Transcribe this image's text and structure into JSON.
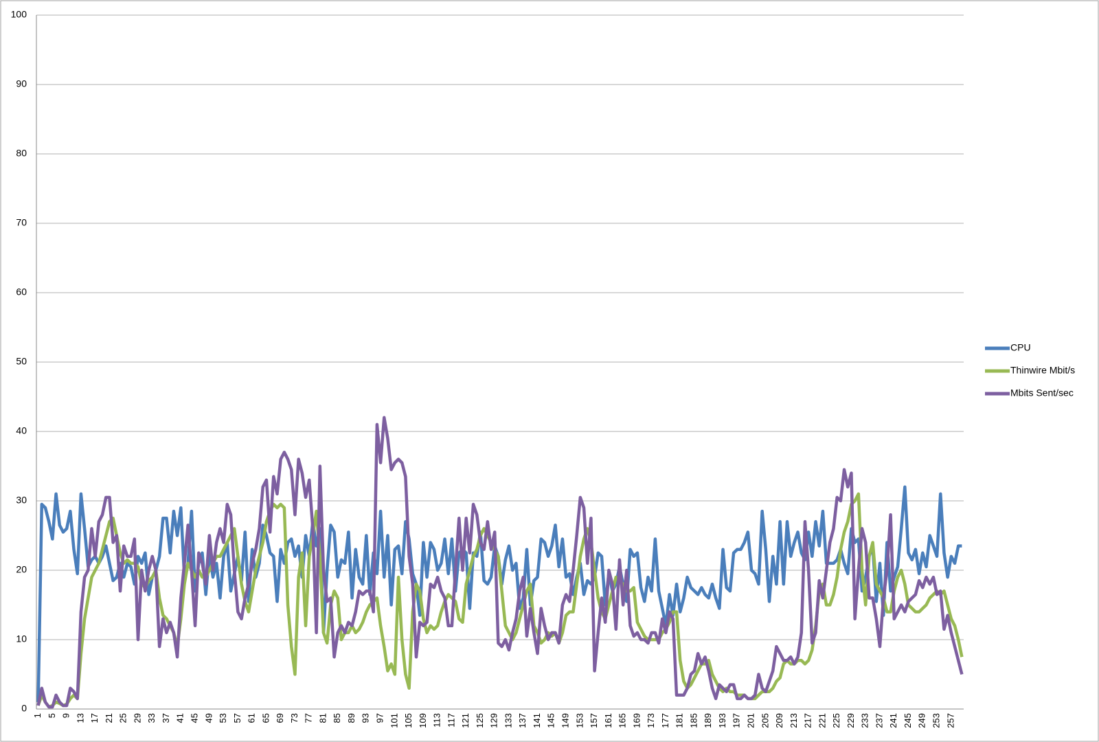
{
  "chart_data": {
    "type": "line",
    "categories": [
      1,
      null,
      null,
      null,
      5,
      null,
      null,
      null,
      9,
      null,
      null,
      null,
      13,
      null,
      null,
      null,
      17,
      null,
      null,
      null,
      21,
      null,
      null,
      null,
      25,
      null,
      null,
      null,
      29,
      null,
      null,
      null,
      33,
      null,
      null,
      null,
      37,
      null,
      null,
      null,
      41,
      null,
      null,
      null,
      45,
      null,
      null,
      null,
      49,
      null,
      null,
      null,
      53,
      null,
      null,
      null,
      57,
      null,
      null,
      null,
      61,
      null,
      null,
      null,
      65,
      null,
      null,
      null,
      69,
      null,
      null,
      null,
      73,
      null,
      null,
      null,
      77,
      null,
      null,
      null,
      81,
      null,
      null,
      null,
      85,
      null,
      null,
      null,
      89,
      null,
      null,
      null,
      93,
      null,
      null,
      null,
      97,
      null,
      null,
      null,
      101,
      null,
      null,
      null,
      105,
      null,
      null,
      null,
      109,
      null,
      null,
      null,
      113,
      null,
      null,
      null,
      117,
      null,
      null,
      null,
      121,
      null,
      null,
      null,
      125,
      null,
      null,
      null,
      129,
      null,
      null,
      null,
      133,
      null,
      null,
      null,
      137,
      null,
      null,
      null,
      141,
      null,
      null,
      null,
      145,
      null,
      null,
      null,
      149,
      null,
      null,
      null,
      153,
      null,
      null,
      null,
      157,
      null,
      null,
      null,
      161,
      null,
      null,
      null,
      165,
      null,
      null,
      null,
      169,
      null,
      null,
      null,
      173,
      null,
      null,
      null,
      177,
      null,
      null,
      null,
      181,
      null,
      null,
      null,
      185,
      null,
      null,
      null,
      189,
      null,
      null,
      null,
      193,
      null,
      null,
      null,
      197,
      null,
      null,
      null,
      201,
      null,
      null,
      null,
      205,
      null,
      null,
      null,
      209,
      null,
      null,
      null,
      213,
      null,
      null,
      null,
      217,
      null,
      null,
      null,
      221,
      null,
      null,
      null,
      225,
      null,
      null,
      null,
      229,
      null,
      null,
      null,
      233,
      null,
      null,
      null,
      237,
      null,
      null,
      null,
      241,
      null,
      null,
      null,
      245,
      null,
      null,
      null,
      249,
      null,
      null,
      null,
      253,
      null,
      null,
      null,
      257,
      null,
      null,
      null
    ],
    "series": [
      {
        "name": "CPU",
        "color": "#4a7ebb",
        "values": [
          1,
          29.5,
          29,
          27,
          24.5,
          31,
          26.5,
          25.5,
          26,
          28.5,
          23,
          19.5,
          31,
          26,
          20.5,
          21.5,
          22,
          21,
          22,
          23.5,
          21,
          18.5,
          19,
          21,
          19,
          21,
          20.5,
          18,
          22,
          21,
          22.5,
          16.5,
          19,
          20,
          22,
          27.5,
          27.5,
          22.5,
          28.5,
          25,
          29,
          19,
          21,
          28.5,
          17,
          21,
          22.5,
          16.5,
          22.5,
          19,
          21,
          16,
          22,
          24,
          17,
          19.5,
          22,
          18.5,
          25.5,
          15.5,
          23,
          19,
          21,
          26.5,
          25,
          22.5,
          22,
          15.5,
          23,
          21,
          24,
          24.5,
          22,
          23.5,
          19,
          25,
          22,
          27,
          23.5,
          26,
          11,
          20,
          26.5,
          25.5,
          19,
          21.5,
          21,
          25.5,
          16,
          23,
          19,
          18,
          25,
          16.5,
          22.5,
          19.5,
          28.5,
          19,
          25,
          15,
          23,
          23.5,
          19.5,
          27,
          24.5,
          19.5,
          18,
          13.5,
          24,
          19,
          24,
          23,
          20,
          21,
          24.5,
          19.5,
          24.5,
          17,
          22.5,
          23,
          22.5,
          14.5,
          22.5,
          22,
          25.5,
          18.5,
          18,
          19,
          23.5,
          22,
          18,
          21.5,
          23.5,
          20,
          21,
          14.5,
          16,
          23,
          15,
          18.5,
          19,
          24.5,
          24,
          22,
          23.5,
          26.5,
          20.5,
          24.5,
          19,
          19.5,
          16.5,
          19,
          21,
          16.5,
          18.5,
          18,
          19,
          22.5,
          22,
          15,
          19.5,
          17,
          18,
          20.5,
          18,
          15.5,
          23,
          22,
          22.5,
          17.5,
          15.5,
          19,
          17,
          24.5,
          17,
          14.5,
          12,
          16.5,
          13.5,
          18,
          14,
          16,
          19,
          17.5,
          17,
          16.5,
          17.5,
          16.5,
          16,
          18,
          16,
          14.5,
          23,
          17.5,
          17,
          22.5,
          23,
          23,
          24,
          25.5,
          20,
          19.5,
          18,
          28.5,
          23,
          15.5,
          22,
          18,
          27,
          18,
          27,
          22,
          24,
          25.5,
          22.5,
          21.5,
          25.5,
          22,
          27,
          23.5,
          28.5,
          21,
          21,
          21,
          21.5,
          23,
          21,
          19.5,
          26,
          24,
          24.5,
          17,
          19,
          22,
          23.5,
          15.5,
          21,
          13.5,
          24,
          17,
          19,
          20.5,
          26,
          32,
          22.5,
          21.5,
          23,
          19.5,
          22.5,
          20.5,
          25,
          23.5,
          22,
          31,
          22.5,
          19,
          22,
          21,
          23.5,
          23.5
        ]
      },
      {
        "name": "Thinwire Mbit/s",
        "color": "#98b954",
        "values": [
          0.5,
          2,
          1,
          0.3,
          0.5,
          1,
          0.8,
          0.5,
          0.7,
          1.5,
          2,
          1.5,
          8,
          13,
          16,
          19,
          20,
          21,
          23,
          25,
          27,
          27.5,
          25,
          22.5,
          21,
          21.5,
          21,
          21,
          20.5,
          18,
          17.5,
          18.5,
          19,
          20,
          16,
          13.5,
          13,
          12,
          11,
          9,
          13,
          18,
          21,
          20,
          19,
          20,
          19,
          19,
          20,
          21,
          22,
          22,
          23,
          24,
          25,
          26,
          22,
          18,
          15.5,
          14,
          17,
          20,
          22,
          24,
          27,
          28.5,
          29.5,
          29,
          29.5,
          29,
          15,
          9,
          5,
          19,
          22.5,
          12,
          22,
          25,
          28.5,
          22,
          11,
          9.5,
          15,
          17,
          16,
          10,
          11,
          11,
          12,
          11,
          11.5,
          12.5,
          14,
          15,
          15.5,
          16,
          12,
          9,
          5.5,
          6.5,
          5,
          19,
          10,
          5,
          3,
          14,
          18,
          17,
          13,
          11,
          12,
          11.5,
          12,
          14,
          15.5,
          16.5,
          16,
          15.5,
          13,
          12.5,
          18,
          20,
          22,
          23,
          25,
          26,
          25,
          24,
          23,
          22,
          17,
          12,
          11,
          10,
          11,
          13,
          15,
          17,
          18,
          12,
          11,
          9.5,
          10,
          11,
          10.5,
          11,
          9.5,
          11,
          13.5,
          14,
          14,
          18,
          22,
          24.5,
          26,
          24,
          20,
          16,
          14,
          13,
          15,
          17,
          19,
          18.5,
          18,
          17,
          17,
          17.5,
          12.5,
          11.5,
          10.5,
          10,
          10,
          10,
          10,
          11,
          11.5,
          12.5,
          14,
          14,
          7,
          4,
          3,
          3.5,
          4.5,
          5.5,
          6.5,
          6.5,
          7,
          5,
          4,
          3,
          2.5,
          3,
          2.5,
          2.5,
          2,
          2,
          2,
          1.5,
          1.5,
          1.5,
          2,
          2.5,
          2.5,
          2.5,
          3,
          4,
          4.5,
          6.5,
          7,
          6.5,
          6.5,
          7,
          7,
          6.5,
          7,
          8.5,
          12,
          17,
          18,
          15,
          15,
          16.5,
          19,
          23,
          25.5,
          27,
          29.5,
          30,
          31,
          20,
          15,
          22,
          24,
          18,
          17,
          16,
          14,
          14,
          17,
          19,
          20,
          18,
          15,
          14.5,
          14,
          14,
          14.5,
          15,
          16,
          16.5,
          17,
          16.5,
          17,
          15,
          13,
          12,
          10,
          7.5
        ]
      },
      {
        "name": "Mbits Sent/sec",
        "color": "#7d5fa0",
        "values": [
          0.5,
          3,
          1,
          0.3,
          0.3,
          2,
          1,
          0.5,
          0.5,
          3,
          2.5,
          1.5,
          14,
          19,
          20,
          26,
          22,
          27,
          28,
          30.5,
          30.5,
          24,
          25,
          17,
          23.5,
          22,
          22,
          24.5,
          10,
          20,
          17,
          20,
          22,
          20,
          9,
          13,
          11,
          12.5,
          11,
          7.5,
          16,
          21,
          26.5,
          20,
          12,
          22.5,
          21,
          18,
          25,
          20,
          24,
          26,
          24,
          29.5,
          28,
          20,
          14,
          13,
          16,
          18,
          21,
          23,
          26,
          32,
          33,
          25.5,
          33.5,
          31,
          36,
          37,
          36,
          34.5,
          28,
          36,
          34,
          30.5,
          33,
          26,
          11,
          35,
          20,
          15.5,
          16,
          7.5,
          11,
          12,
          11,
          12.5,
          12,
          14,
          17,
          16.5,
          17,
          17,
          14,
          41,
          35.5,
          42,
          39,
          34.5,
          35.5,
          36,
          35.5,
          33.5,
          22,
          18,
          7.5,
          12.5,
          12,
          12.5,
          18,
          17.5,
          19,
          17,
          16,
          12,
          12,
          20,
          27.5,
          20,
          27.5,
          22.5,
          29.5,
          28,
          24,
          23,
          27,
          23,
          25.5,
          9.5,
          9,
          10,
          8.5,
          11,
          13,
          17,
          19,
          10.5,
          14.5,
          11,
          8,
          14.5,
          12,
          10,
          11,
          11,
          9.5,
          15,
          16.5,
          15.5,
          20,
          25,
          30.5,
          29,
          21,
          27.5,
          5.5,
          11,
          16,
          12.5,
          20,
          18,
          11.5,
          21.5,
          15,
          20,
          12,
          10.5,
          11,
          10,
          10,
          9.5,
          11,
          11,
          9.5,
          13,
          11,
          14,
          13,
          2,
          2,
          2,
          3,
          5,
          5.5,
          8,
          6.5,
          7.5,
          5.5,
          3,
          1.5,
          3.5,
          3,
          2.5,
          3.5,
          3.5,
          1.5,
          1.5,
          2,
          1.5,
          1.5,
          2,
          5,
          3,
          2.5,
          4,
          5.5,
          9,
          8,
          7,
          7,
          7.5,
          6.5,
          7.5,
          11,
          27,
          20,
          9.5,
          11,
          18.5,
          16,
          20,
          24,
          26,
          30.5,
          30,
          34.5,
          32,
          34,
          13,
          20,
          26,
          24,
          16,
          16,
          13,
          9,
          16,
          20,
          28,
          13,
          14,
          15,
          14,
          15.5,
          16,
          16.5,
          18.5,
          17.5,
          19,
          18,
          19,
          16.5,
          17,
          11.5,
          13.5,
          11,
          9,
          7,
          5
        ]
      }
    ],
    "ylim": [
      0,
      100
    ],
    "yticks": [
      0,
      10,
      20,
      30,
      40,
      50,
      60,
      70,
      80,
      90,
      100
    ],
    "grid": true,
    "legend": "right"
  }
}
